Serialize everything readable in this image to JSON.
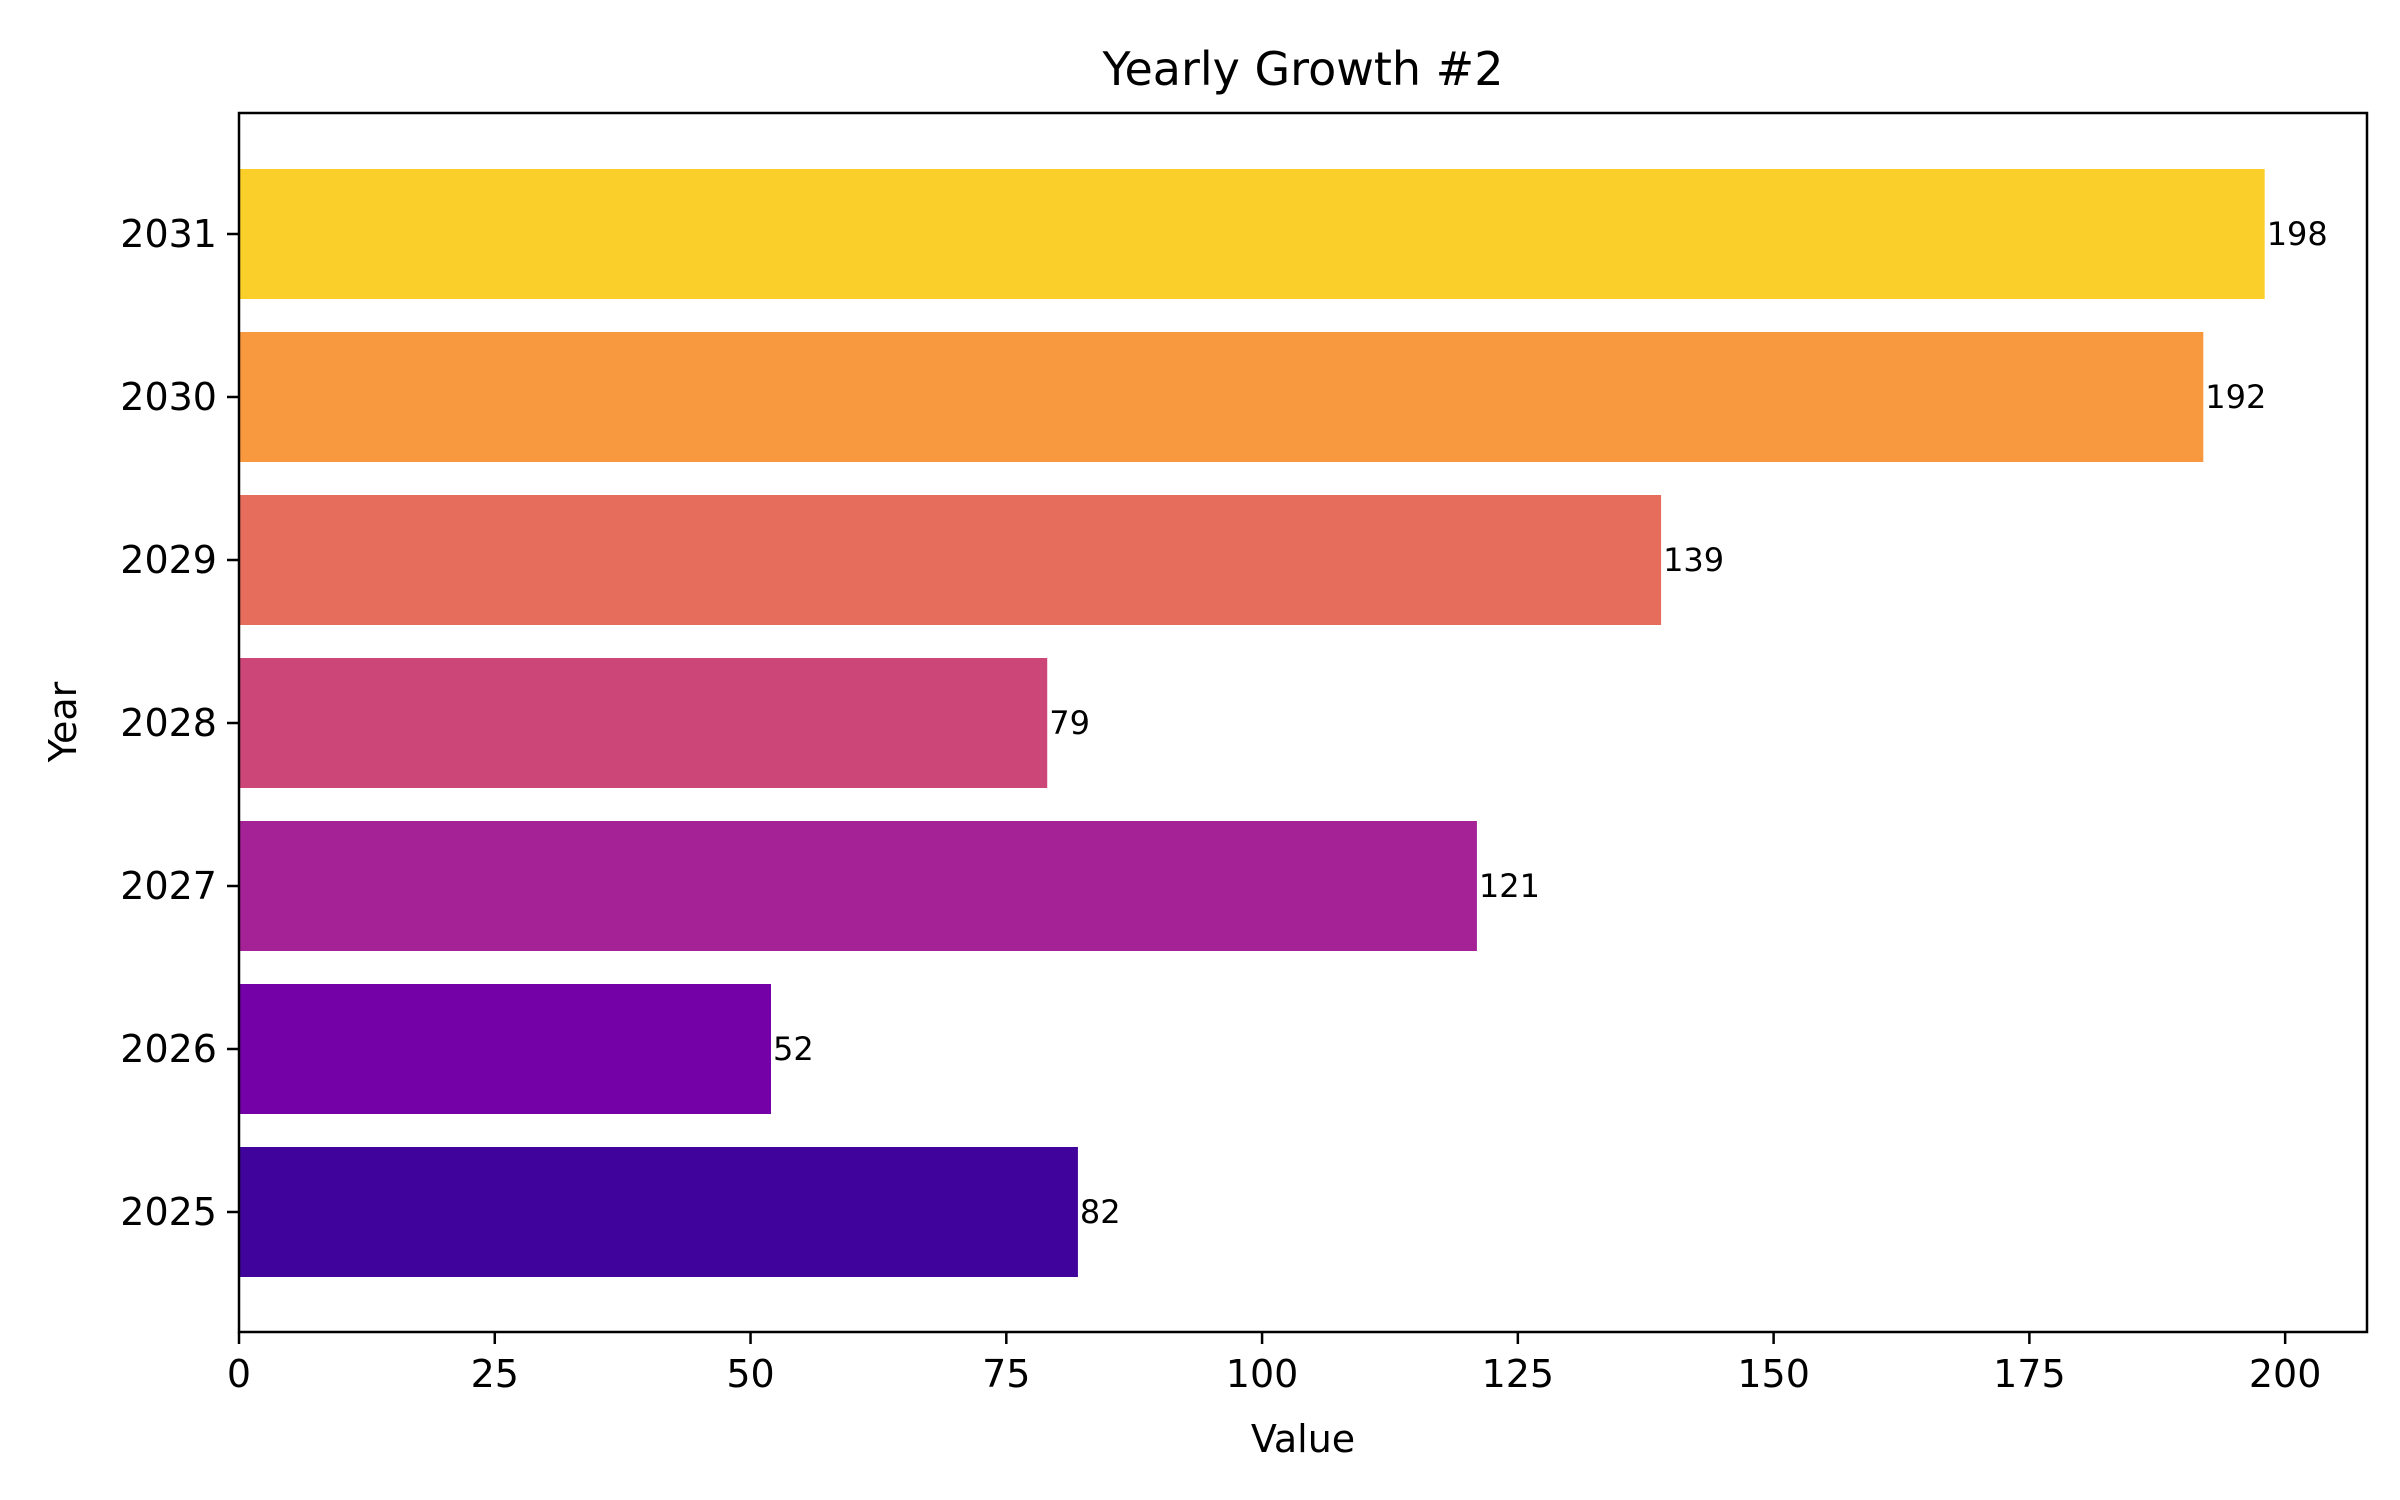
{
  "chart_data": {
    "type": "bar",
    "orientation": "horizontal",
    "title": "Yearly Growth #2",
    "xlabel": "Value",
    "ylabel": "Year",
    "categories": [
      "2025",
      "2026",
      "2027",
      "2028",
      "2029",
      "2030",
      "2031"
    ],
    "values": [
      82,
      52,
      121,
      79,
      139,
      192,
      198
    ],
    "data_labels": [
      "82",
      "52",
      "121",
      "79",
      "139",
      "192",
      "198"
    ],
    "colors": [
      "#40049c",
      "#7400a8",
      "#a42296",
      "#cc4778",
      "#e66c5c",
      "#f89940",
      "#fbcf29"
    ],
    "xlim": [
      0,
      208
    ],
    "xticks": [
      0,
      25,
      50,
      75,
      100,
      125,
      150,
      175,
      200
    ],
    "xtick_labels": [
      "0",
      "25",
      "50",
      "75",
      "100",
      "125",
      "150",
      "175",
      "200"
    ],
    "grid": false,
    "legend": "none"
  }
}
